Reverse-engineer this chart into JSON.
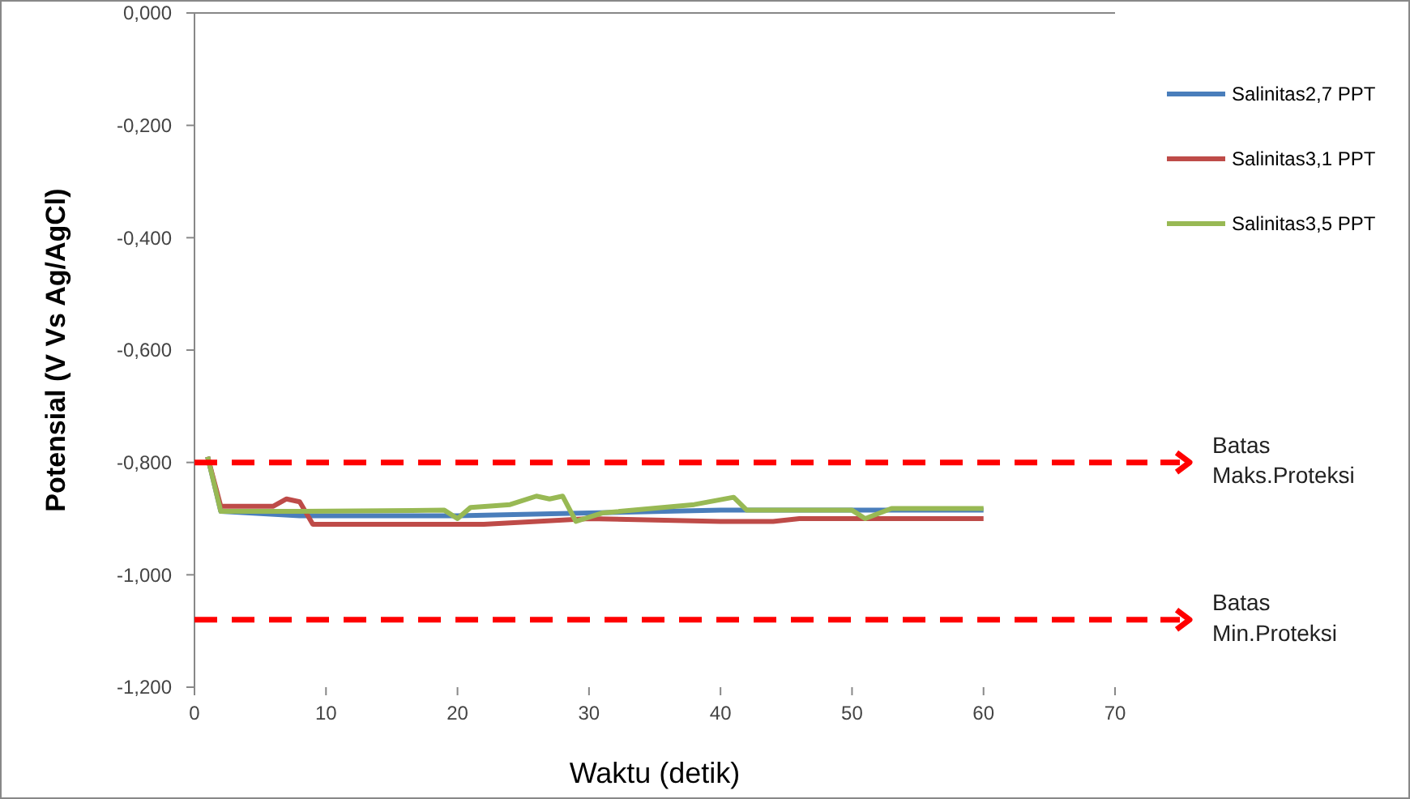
{
  "chart_data": {
    "type": "line",
    "xlabel": "Waktu (detik)",
    "ylabel": "Potensial (V Vs Ag/AgCl)",
    "xlim": [
      0,
      70
    ],
    "xticks": [
      0,
      10,
      20,
      30,
      40,
      50,
      60,
      70
    ],
    "ylim": [
      -1.2,
      0
    ],
    "yticks": [
      {
        "value": 0,
        "label": "0,000"
      },
      {
        "value": -0.2,
        "label": "-0,200"
      },
      {
        "value": -0.4,
        "label": "-0,400"
      },
      {
        "value": -0.6,
        "label": "-0,600"
      },
      {
        "value": -0.8,
        "label": "-0,800"
      },
      {
        "value": -1,
        "label": "-1,000"
      },
      {
        "value": -1.2,
        "label": "-1,200"
      }
    ],
    "grid": false,
    "legend": "top right",
    "marker": "none",
    "line_style": "solid",
    "series": [
      {
        "name": "Salinitas2,7 PPT",
        "color": "#4a7ebb",
        "x": [
          1,
          2,
          8,
          20,
          30,
          40,
          42,
          60
        ],
        "values": [
          -0.79,
          -0.887,
          -0.895,
          -0.895,
          -0.89,
          -0.885,
          -0.885,
          -0.885
        ]
      },
      {
        "name": "Salinitas3,1 PPT",
        "color": "#be4b48",
        "x": [
          1,
          2,
          6,
          7,
          8,
          9,
          22,
          30,
          40,
          44,
          46,
          60
        ],
        "values": [
          -0.79,
          -0.878,
          -0.878,
          -0.865,
          -0.87,
          -0.91,
          -0.91,
          -0.9,
          -0.905,
          -0.905,
          -0.9,
          -0.9
        ]
      },
      {
        "name": "Salinitas3,5 PPT",
        "color": "#98b954",
        "x": [
          1,
          2,
          8,
          19,
          20,
          21,
          24,
          26,
          27,
          28,
          29,
          31,
          38,
          41,
          42,
          50,
          51,
          53,
          60
        ],
        "values": [
          -0.79,
          -0.887,
          -0.887,
          -0.885,
          -0.9,
          -0.88,
          -0.875,
          -0.86,
          -0.865,
          -0.86,
          -0.905,
          -0.89,
          -0.875,
          -0.862,
          -0.885,
          -0.885,
          -0.9,
          -0.882,
          -0.882
        ]
      }
    ],
    "ref_lines": [
      {
        "axis": "y",
        "value": -0.8,
        "label": "Batas Maks.Proteksi",
        "color": "#ff0000",
        "line_style": "dashed"
      },
      {
        "axis": "y",
        "value": -1.08,
        "label": "Batas Min.Proteksi",
        "color": "#ff0000",
        "line_style": "dashed"
      }
    ]
  }
}
